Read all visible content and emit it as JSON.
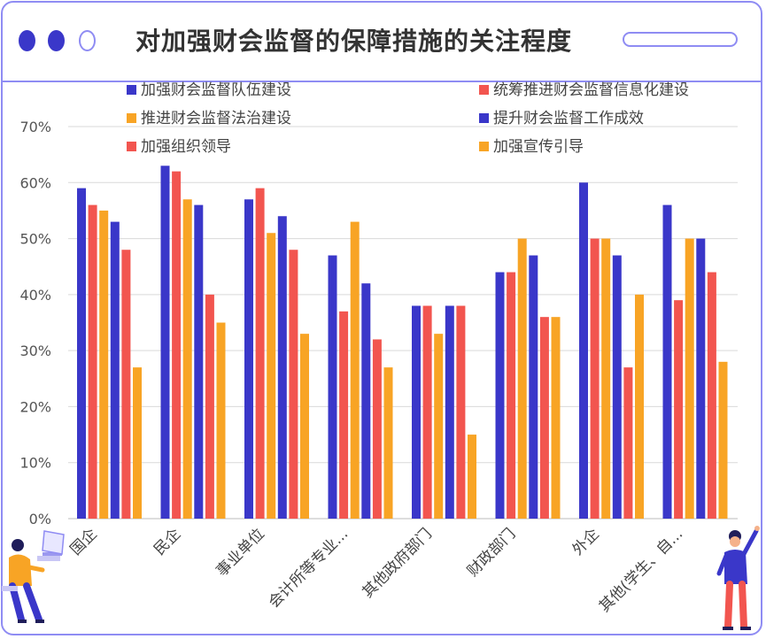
{
  "header": {
    "title": "对加强财会监督的保障措施的关注程度",
    "dot_colors": [
      "#3a37c9",
      "#3a37c9",
      "#ffffff"
    ]
  },
  "chart_data": {
    "type": "bar",
    "categories": [
      "国企",
      "民企",
      "事业单位",
      "会计所等专业...",
      "其他政府部门",
      "财政部门",
      "外企",
      "其他(学生、自..."
    ],
    "series": [
      {
        "name": "加强财会监督队伍建设",
        "color": "#3a37c9",
        "values": [
          59,
          63,
          57,
          47,
          38,
          44,
          60,
          56
        ]
      },
      {
        "name": "统筹推进财会监督信息化建设",
        "color": "#f2554f",
        "values": [
          56,
          62,
          59,
          37,
          38,
          44,
          50,
          39
        ]
      },
      {
        "name": "推进财会监督法治建设",
        "color": "#f8a425",
        "values": [
          55,
          57,
          51,
          53,
          33,
          50,
          50,
          50
        ]
      },
      {
        "name": "提升财会监督工作成效",
        "color": "#3a37c9",
        "values": [
          53,
          56,
          54,
          42,
          38,
          47,
          47,
          50
        ]
      },
      {
        "name": "加强组织领导",
        "color": "#f2554f",
        "values": [
          48,
          40,
          48,
          32,
          38,
          36,
          27,
          44
        ]
      },
      {
        "name": "加强宣传引导",
        "color": "#f8a425",
        "values": [
          27,
          35,
          33,
          27,
          15,
          36,
          40,
          28
        ]
      }
    ],
    "ylim": [
      0,
      70
    ],
    "yticks": [
      "0%",
      "10%",
      "20%",
      "30%",
      "40%",
      "50%",
      "60%",
      "70%"
    ],
    "grid": true,
    "legend_position": "top"
  },
  "decor": {
    "left_figure": "person-at-laptop-illustration",
    "right_figure": "person-waving-illustration"
  }
}
